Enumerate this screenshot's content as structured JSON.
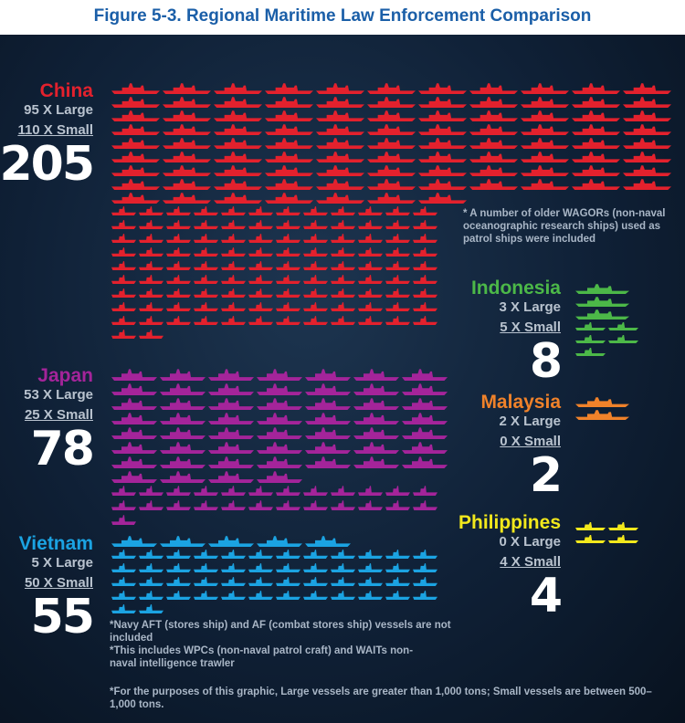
{
  "title": "Figure 5-3. Regional Maritime Law Enforcement Comparison",
  "countries": [
    {
      "name": "China",
      "color": "#e3212d",
      "large": 95,
      "large_label": "95 X Large",
      "small": 110,
      "small_label": "110 X Small",
      "total": 205
    },
    {
      "name": "Japan",
      "color": "#a4249a",
      "large": 53,
      "large_label": "53 X Large",
      "small": 25,
      "small_label": "25 X Small",
      "total": 78
    },
    {
      "name": "Vietnam",
      "color": "#1ba3e2",
      "large": 5,
      "large_label": "5 X Large",
      "small": 50,
      "small_label": "50 X Small",
      "total": 55
    },
    {
      "name": "Indonesia",
      "color": "#4cb848",
      "large": 3,
      "large_label": "3 X Large",
      "small": 5,
      "small_label": "5 X Small",
      "total": 8
    },
    {
      "name": "Malaysia",
      "color": "#f0822a",
      "large": 2,
      "large_label": "2 X Large",
      "small": 0,
      "small_label": "0 X Small",
      "total": 2
    },
    {
      "name": "Philippines",
      "color": "#f2e81c",
      "large": 0,
      "large_label": "0 X Large",
      "small": 4,
      "small_label": "4 X Small",
      "total": 4
    }
  ],
  "notes": [
    "* A number of older WAGORs (non-naval oceanographic research ships) used as patrol ships were included",
    "*Navy AFT (stores ship) and AF (combat stores ship) vessels are not included",
    "*This includes WPCs (non-naval patrol craft) and WAITs non-naval intelligence trawler"
  ],
  "footnote": "*For the purposes of this graphic, Large vessels are greater than 1,000 tons; Small vessels are between 500–1,000 tons."
}
